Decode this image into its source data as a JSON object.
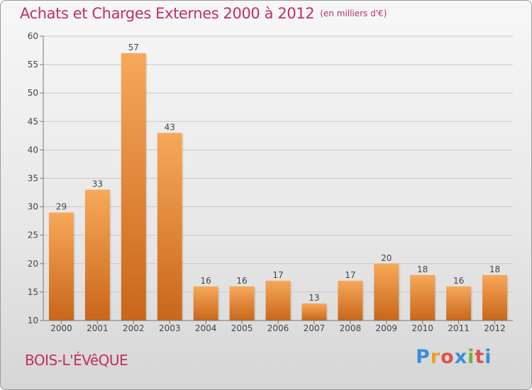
{
  "header": {
    "title": "Achats et Charges Externes 2000 à 2012",
    "unit": "(en milliers d'€)"
  },
  "footer": {
    "commune": "BOIS-L'ÉVêQUE",
    "brand_letters": [
      "P",
      "r",
      "o",
      "x",
      "i",
      "t",
      "i"
    ],
    "brand_colors": [
      "#3a8fd8",
      "#f0a020",
      "#e05050",
      "#3a8fd8",
      "#70b040",
      "#e05050",
      "#3a8fd8"
    ]
  },
  "colors": {
    "bar_top": "#f7a85a",
    "bar_bottom": "#c9661a",
    "title": "#c0305a"
  },
  "chart_data": {
    "type": "bar",
    "categories": [
      "2000",
      "2001",
      "2002",
      "2003",
      "2004",
      "2005",
      "2006",
      "2007",
      "2008",
      "2009",
      "2010",
      "2011",
      "2012"
    ],
    "values": [
      29,
      33,
      57,
      43,
      16,
      16,
      17,
      13,
      17,
      20,
      18,
      16,
      18
    ],
    "ylim": [
      10,
      60
    ],
    "yticks": [
      10,
      15,
      20,
      25,
      30,
      35,
      40,
      45,
      50,
      55,
      60
    ],
    "grid": true
  }
}
